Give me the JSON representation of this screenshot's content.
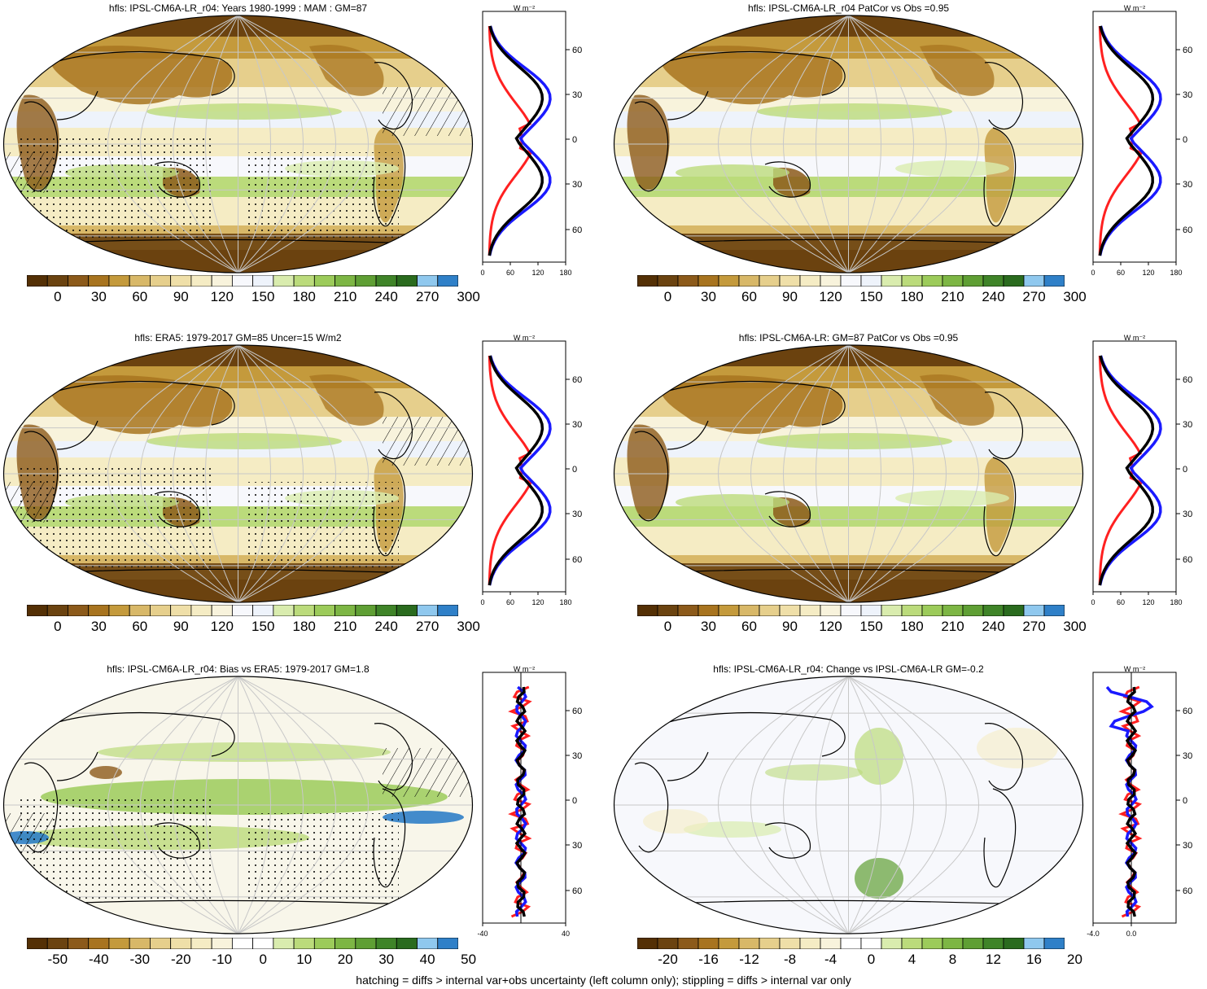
{
  "footer": "hatching = diffs > internal var+obs uncertainty (left column only); stippling = diffs > internal var only",
  "colors": {
    "blue": "#1a1aff",
    "red": "#ff2020",
    "black": "#000000",
    "abs_palette": [
      "#543005",
      "#6b4310",
      "#8c5a1a",
      "#a8741f",
      "#c49a3c",
      "#d8b868",
      "#e6cf8c",
      "#efdfa8",
      "#f5ecc4",
      "#f8f3dc",
      "#f7f8fc",
      "#eef3fb",
      "#d9ecae",
      "#bbdb7b",
      "#9ccb5a",
      "#7db644",
      "#5f9f34",
      "#3f8428",
      "#2a6b1e",
      "#8fc8ee",
      "#2f80c8"
    ],
    "diff_palette": [
      "#543005",
      "#6b4310",
      "#8c5a1a",
      "#a8741f",
      "#c49a3c",
      "#d8b868",
      "#e6cf8c",
      "#efdfa8",
      "#f5ecc4",
      "#f8f3dc",
      "#ffffff",
      "#ffffff",
      "#d9ecae",
      "#bbdb7b",
      "#9ccb5a",
      "#7db644",
      "#5f9f34",
      "#3f8428",
      "#2a6b1e",
      "#8fc8ee",
      "#2f80c8"
    ]
  },
  "profile_unit": "W m⁻²",
  "lat_ticks": [
    "60N",
    "30N",
    "0",
    "30S",
    "60S"
  ],
  "panels": [
    {
      "title": "hfls: IPSL-CM6A-LR_r04: Years 1980-1999 : MAM : GM=87",
      "cbar": [
        "0",
        "30",
        "60",
        "90",
        "120",
        "150",
        "180",
        "210",
        "240",
        "270",
        "300"
      ],
      "xticks": [
        "0",
        "60",
        "120",
        "180"
      ],
      "hatch": true,
      "kind": "abs"
    },
    {
      "title": "hfls: IPSL-CM6A-LR_r04 PatCor vs Obs =0.95",
      "cbar": [
        "0",
        "30",
        "60",
        "90",
        "120",
        "150",
        "180",
        "210",
        "240",
        "270",
        "300"
      ],
      "xticks": [
        "0",
        "60",
        "120",
        "180"
      ],
      "hatch": false,
      "kind": "abs"
    },
    {
      "title": "hfls: ERA5: 1979-2017 GM=85 Uncer=15 W/m2",
      "cbar": [
        "0",
        "30",
        "60",
        "90",
        "120",
        "150",
        "180",
        "210",
        "240",
        "270",
        "300"
      ],
      "xticks": [
        "0",
        "60",
        "120",
        "180"
      ],
      "hatch": true,
      "kind": "abs"
    },
    {
      "title": "hfls: IPSL-CM6A-LR: GM=87 PatCor vs Obs =0.95",
      "cbar": [
        "0",
        "30",
        "60",
        "90",
        "120",
        "150",
        "180",
        "210",
        "240",
        "270",
        "300"
      ],
      "xticks": [
        "0",
        "60",
        "120",
        "180"
      ],
      "hatch": false,
      "kind": "abs"
    },
    {
      "title": "hfls: IPSL-CM6A-LR_r04: Bias vs ERA5: 1979-2017 GM=1.8",
      "cbar": [
        "-50",
        "-40",
        "-30",
        "-20",
        "-10",
        "0",
        "10",
        "20",
        "30",
        "40",
        "50"
      ],
      "xticks": [
        "-40",
        "40"
      ],
      "hatch": true,
      "kind": "bias"
    },
    {
      "title": "hfls: IPSL-CM6A-LR_r04: Change vs IPSL-CM6A-LR GM=-0.2",
      "cbar": [
        "-20",
        "-16",
        "-12",
        "-8",
        "-4",
        "0",
        "4",
        "8",
        "12",
        "16",
        "20"
      ],
      "xticks": [
        "-4.0",
        "0.0"
      ],
      "hatch": false,
      "kind": "change"
    }
  ]
}
